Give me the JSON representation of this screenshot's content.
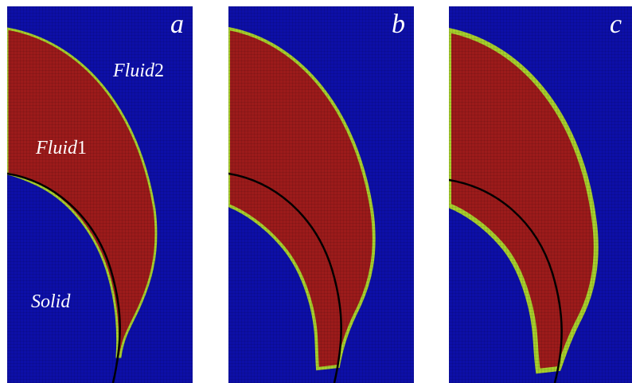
{
  "panels": [
    {
      "id": "a",
      "letter": "a",
      "fluid2_label": "Fluid",
      "fluid2_num": "2",
      "fluid1_label": "Fluid",
      "fluid1_num": "1",
      "solid_label": "Solid"
    },
    {
      "id": "b",
      "letter": "b"
    },
    {
      "id": "c",
      "letter": "c"
    }
  ],
  "colors": {
    "fluid2": "#0d0fa8",
    "fluid1": "#9c1b1b",
    "interface_inner": "#2fa34a",
    "interface_outer": "#a7cf2c",
    "solid_boundary": "#000000",
    "grid": "#000000"
  }
}
